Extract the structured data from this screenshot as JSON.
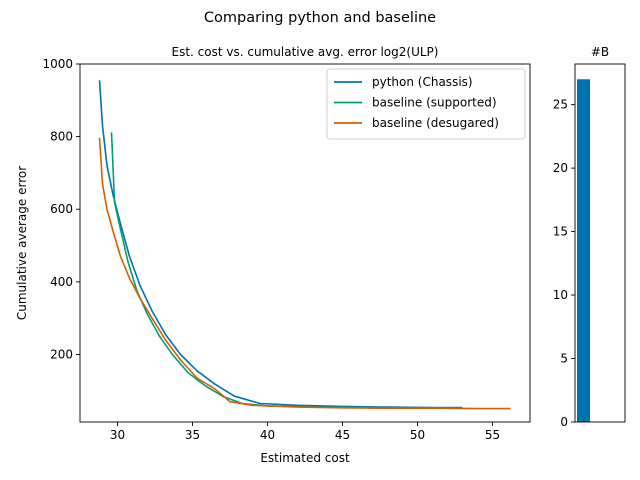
{
  "figure": {
    "suptitle": "Comparing python and baseline"
  },
  "chart_data": [
    {
      "type": "line",
      "title": "Est. cost vs. cumulative avg. error log2(ULP)",
      "xlabel": "Estimated cost",
      "ylabel": "Cumulative average error",
      "xlim": [
        27.5,
        57.5
      ],
      "ylim": [
        14,
        1000
      ],
      "xticks": [
        30,
        35,
        40,
        45,
        50,
        55
      ],
      "yticks": [
        200,
        400,
        600,
        800,
        1000
      ],
      "legend_loc": "upper right",
      "grid": false,
      "series": [
        {
          "name": "python (Chassis)",
          "color": "#0072b2",
          "x": [
            28.8,
            29.0,
            29.3,
            29.7,
            30.2,
            30.8,
            31.5,
            32.3,
            33.2,
            34.2,
            35.3,
            36.5,
            37.8,
            39.5,
            42.0,
            45.0,
            48.0,
            51.0,
            53.0
          ],
          "y": [
            955,
            830,
            720,
            640,
            560,
            470,
            390,
            320,
            255,
            200,
            155,
            118,
            85,
            65,
            60,
            57,
            55,
            54,
            54
          ]
        },
        {
          "name": "baseline (supported)",
          "color": "#009e73",
          "x": [
            29.6,
            29.8,
            30.2,
            30.7,
            31.3,
            32.0,
            32.8,
            33.7,
            34.7,
            35.8,
            37.0,
            38.3,
            40.0,
            43.0,
            46.0,
            49.0,
            52.0,
            53.0
          ],
          "y": [
            812,
            620,
            545,
            455,
            375,
            310,
            250,
            198,
            150,
            115,
            85,
            65,
            58,
            55,
            54,
            53,
            53,
            53
          ]
        },
        {
          "name": "baseline (desugared)",
          "color": "#d55e00",
          "x": [
            28.8,
            29.0,
            29.3,
            29.7,
            30.2,
            30.8,
            31.5,
            32.3,
            33.2,
            34.2,
            35.3,
            36.5,
            37.5,
            39.0,
            42.0,
            45.0,
            48.0,
            51.0,
            54.0,
            56.2
          ],
          "y": [
            797,
            670,
            600,
            540,
            470,
            410,
            355,
            300,
            240,
            185,
            135,
            105,
            70,
            60,
            55,
            53,
            52,
            52,
            51,
            51
          ]
        }
      ]
    },
    {
      "type": "bar",
      "title": "#B",
      "categories": [
        ""
      ],
      "values": [
        27
      ],
      "color": "#0072b2",
      "ylim": [
        0,
        28.2
      ],
      "yticks": [
        0,
        5,
        10,
        15,
        20,
        25
      ]
    }
  ]
}
